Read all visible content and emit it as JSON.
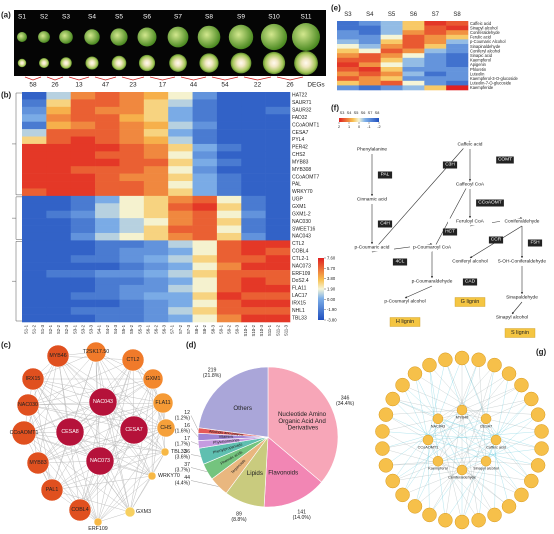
{
  "panels": {
    "a": {
      "label": "(a)",
      "stages": [
        "S1",
        "S2",
        "S3",
        "S4",
        "S5",
        "S6",
        "S7",
        "S8",
        "S9",
        "S10",
        "S11"
      ],
      "degs": [
        58,
        26,
        13,
        47,
        23,
        17,
        44,
        54,
        22,
        26
      ],
      "degs_label": "DEGs"
    },
    "b": {
      "label": "(b)",
      "genes": [
        "HAT22",
        "SAUR71",
        "SAUR32",
        "FAD32",
        "CCoAOMT1",
        "CESA7",
        "PYL4",
        "PER42",
        "CHS2",
        "MYB83",
        "MYB308",
        "CCoAOMT7",
        "PAL",
        "WRKY70",
        "UGP",
        "GXM1",
        "GXM1-2",
        "NAC030",
        "SWEET16",
        "NAC043",
        "CTL2",
        "COBL4",
        "CTL2-1",
        "NAC073",
        "ERF109",
        "DoS2.4",
        "FLA11",
        "LAC17",
        "IRX15",
        "NHL1",
        "TBL33"
      ],
      "samples": [
        "S1-1",
        "S1-2",
        "S1-3",
        "S2-1",
        "S2-2",
        "S2-3",
        "S3-1",
        "S3-2",
        "S3-3",
        "S4-1",
        "S4-2",
        "S4-3",
        "S5-1",
        "S5-2",
        "S5-3",
        "S6-1",
        "S6-2",
        "S6-3",
        "S7-1",
        "S7-2",
        "S7-3",
        "S8-1",
        "S8-2",
        "S8-3",
        "S9-1",
        "S9-2",
        "S9-3",
        "S10-1",
        "S10-2",
        "S10-3",
        "S11-1",
        "S11-2",
        "S11-3"
      ],
      "matrix": [
        [
          -3,
          1,
          5,
          6,
          5,
          4,
          2,
          -1,
          -3,
          -3,
          -3
        ],
        [
          -2,
          3,
          6,
          6,
          5,
          3,
          1,
          -2,
          -3,
          -3,
          -3
        ],
        [
          -1,
          4,
          6,
          5,
          5,
          3,
          0,
          -2,
          -3,
          -3,
          -2
        ],
        [
          0,
          5,
          6,
          6,
          4,
          3,
          0,
          -2,
          -3,
          -3,
          -3
        ],
        [
          -2,
          4,
          5,
          6,
          5,
          4,
          1,
          -1,
          -3,
          -3,
          -3
        ],
        [
          1,
          6,
          6,
          6,
          5,
          3,
          0,
          -2,
          -3,
          -3,
          -3
        ],
        [
          3,
          6,
          7,
          6,
          5,
          4,
          1,
          -2,
          -3,
          -3,
          -3
        ],
        [
          7,
          7,
          7,
          7,
          6,
          5,
          3,
          0,
          -2,
          -3,
          -3
        ],
        [
          7,
          7,
          7,
          6,
          6,
          5,
          2,
          -1,
          -3,
          -3,
          -3
        ],
        [
          7,
          7,
          7,
          7,
          6,
          6,
          3,
          0,
          -2,
          -3,
          -3
        ],
        [
          7,
          7,
          6,
          6,
          6,
          5,
          2,
          -1,
          -3,
          -3,
          -3
        ],
        [
          7,
          7,
          7,
          6,
          5,
          5,
          3,
          0,
          -2,
          -3,
          -3
        ],
        [
          7,
          7,
          7,
          6,
          6,
          5,
          2,
          0,
          -2,
          -3,
          -3
        ],
        [
          6,
          7,
          7,
          6,
          6,
          5,
          3,
          0,
          -2,
          -3,
          -3
        ],
        [
          -3,
          -3,
          -2,
          0,
          2,
          3,
          5,
          6,
          2,
          -2,
          -3
        ],
        [
          -3,
          -3,
          -2,
          1,
          2,
          3,
          6,
          7,
          3,
          -2,
          -3
        ],
        [
          -3,
          -2,
          -1,
          1,
          2,
          3,
          5,
          6,
          2,
          -1,
          -3
        ],
        [
          -3,
          -3,
          -2,
          0,
          1,
          2,
          5,
          6,
          3,
          -2,
          -3
        ],
        [
          -3,
          -3,
          -2,
          0,
          1,
          3,
          6,
          6,
          2,
          -2,
          -3
        ],
        [
          -3,
          -3,
          -1,
          1,
          2,
          3,
          5,
          6,
          3,
          -1,
          -3
        ],
        [
          -3,
          -3,
          -3,
          -2,
          -2,
          -1,
          1,
          2,
          6,
          7,
          7
        ],
        [
          -3,
          -3,
          -3,
          -2,
          -1,
          -1,
          0,
          2,
          6,
          7,
          6
        ],
        [
          -3,
          -3,
          -2,
          -2,
          -1,
          0,
          1,
          3,
          6,
          6,
          7
        ],
        [
          -3,
          -3,
          -3,
          -3,
          -2,
          -1,
          0,
          2,
          5,
          7,
          7
        ],
        [
          -3,
          -2,
          -2,
          -1,
          -1,
          0,
          1,
          3,
          6,
          6,
          6
        ],
        [
          -3,
          -3,
          -3,
          -2,
          -2,
          -1,
          0,
          2,
          6,
          7,
          6
        ],
        [
          -3,
          -3,
          -3,
          -2,
          -1,
          -1,
          1,
          2,
          6,
          7,
          7
        ],
        [
          -3,
          -3,
          -2,
          -2,
          -1,
          0,
          0,
          3,
          7,
          6,
          6
        ],
        [
          -3,
          -3,
          -3,
          -3,
          -2,
          -1,
          0,
          2,
          6,
          7,
          7
        ],
        [
          -3,
          -3,
          -2,
          -2,
          -2,
          -1,
          1,
          3,
          6,
          6,
          6
        ],
        [
          -3,
          -3,
          -3,
          -2,
          -2,
          -1,
          0,
          2,
          5,
          7,
          7
        ]
      ],
      "scale": [
        {
          "value": 7.6,
          "label": "7.60"
        },
        {
          "value": 5.7,
          "label": "5.70"
        },
        {
          "value": 3.8,
          "label": "3.80"
        },
        {
          "value": 1.9,
          "label": "1.90"
        },
        {
          "value": 0,
          "label": "0.00"
        },
        {
          "value": -1.9,
          "label": "-1.90"
        },
        {
          "value": -3.8,
          "label": "-3.80"
        }
      ]
    },
    "c": {
      "label": "(c)",
      "nodes": [
        {
          "label": "MYB46",
          "color": "#e0501f"
        },
        {
          "label": "T2SK17.50",
          "color": "#f07a2a"
        },
        {
          "label": "CTL2",
          "color": "#f07a2a"
        },
        {
          "label": "GXM1",
          "color": "#f3882e"
        },
        {
          "label": "IRX15",
          "color": "#e0501f"
        },
        {
          "label": "NAC030",
          "color": "#e0501f"
        },
        {
          "label": "FLA11",
          "color": "#f59a35"
        },
        {
          "label": "CCoAOMT1",
          "color": "#e0501f"
        },
        {
          "label": "CHS",
          "color": "#f5a03a"
        },
        {
          "label": "NAC043",
          "color": "#b5123a"
        },
        {
          "label": "CESA8",
          "color": "#b5123a"
        },
        {
          "label": "CESA7",
          "color": "#b5123a"
        },
        {
          "label": "NAC073",
          "color": "#b5123a"
        },
        {
          "label": "TBL33",
          "color": "#f7b845"
        },
        {
          "label": "MYB83",
          "color": "#e0501f"
        },
        {
          "label": "PAL1",
          "color": "#e0501f"
        },
        {
          "label": "WRKY70",
          "color": "#f7b845"
        },
        {
          "label": "COBL4",
          "color": "#e0501f"
        },
        {
          "label": "ERF109",
          "color": "#f7b845"
        },
        {
          "label": "GXM3",
          "color": "#f7d060"
        }
      ]
    },
    "d": {
      "label": "(d)",
      "slices": [
        {
          "name": "Nucleotide Amino Organic Acid And Derivatives",
          "value": 346,
          "percent_label": "(34.4%)",
          "color": "#f7a6b8"
        },
        {
          "name": "Flavonoids",
          "value": 141,
          "percent_label": "(14.0%)",
          "color": "#f286b4"
        },
        {
          "name": "Lipids",
          "value": 89,
          "percent_label": "(8.8%)",
          "color": "#c9cb7e"
        },
        {
          "name": "Terpenoids",
          "value": 44,
          "percent_label": "(4.4%)",
          "color": "#e9b77f"
        },
        {
          "name": "Phenolic acids",
          "value": 37,
          "percent_label": "(3.7%)",
          "color": "#74c47e"
        },
        {
          "name": "Phenylpropanoids",
          "value": 36,
          "percent_label": "(3.6%)",
          "color": "#5fbfb0"
        },
        {
          "name": "Phytohormones",
          "value": 17,
          "percent_label": "(1.7%)",
          "color": "#c59be0"
        },
        {
          "name": "Vitamins",
          "value": 16,
          "percent_label": "(1.6%)",
          "color": "#9f86d6"
        },
        {
          "name": "Alcohols and polyols",
          "value": 12,
          "percent_label": "(1.2%)",
          "color": "#e65a5a"
        },
        {
          "name": "Others",
          "value": 219,
          "percent_label": "(21.8%)",
          "color": "#aaa6d9"
        }
      ]
    },
    "e": {
      "label": "(e)",
      "columns": [
        "S3",
        "S4",
        "S5",
        "S6",
        "S7",
        "S8"
      ],
      "rows": [
        "Caffeic acid",
        "Sinapyl alcohol",
        "Coniferaldehyde",
        "Ferulic acid",
        "p-Coumaric Alcohol",
        "Sinapinaldehyde",
        "Coniferyl alcohol",
        "Sinapic acid",
        "Kaempferol",
        "Apigenin",
        "Phloretin",
        "Luteolin",
        "Kaempferol-3-O-glucoside",
        "Luteolin-7-O-glucoside",
        "Kaempferide"
      ],
      "matrix": [
        [
          -1.5,
          -1,
          -0.5,
          0.5,
          1.8,
          1.5
        ],
        [
          -1.5,
          -1.5,
          -0.5,
          0.5,
          1.5,
          1.8
        ],
        [
          -1,
          -1.5,
          -0.5,
          1,
          1.5,
          1
        ],
        [
          -1,
          -1,
          0,
          1.5,
          1,
          0.5
        ],
        [
          -0.5,
          -1,
          0.5,
          1.5,
          1,
          -0.5
        ],
        [
          0,
          -0.5,
          1,
          1.5,
          0.5,
          -1
        ],
        [
          0.5,
          0,
          1.5,
          1,
          -0.5,
          -1
        ],
        [
          1,
          1.5,
          1,
          0,
          -1,
          -1.5
        ],
        [
          1.5,
          1.5,
          0.5,
          -0.5,
          -1,
          -1.5
        ],
        [
          1.8,
          1,
          0,
          -0.5,
          -1,
          -1.5
        ],
        [
          1.5,
          1.8,
          0.5,
          -1,
          -1,
          -1
        ],
        [
          1,
          1.5,
          1,
          -0.5,
          -1.5,
          -1
        ],
        [
          1.5,
          1,
          0.5,
          -1,
          -1,
          -1
        ],
        [
          0.5,
          1,
          1.5,
          0,
          -1,
          -1.5
        ],
        [
          -1,
          -1.5,
          -1,
          -0.5,
          0.5,
          2
        ]
      ]
    },
    "f": {
      "label": "(f)",
      "scale": [
        2,
        1,
        0,
        -1,
        -2
      ],
      "compounds": [
        "Phenylalanine",
        "Cinnamic acid",
        "p-Coumaric acid",
        "p-Coumaroyl CoA",
        "Caffeic acid",
        "Caffeoyl CoA",
        "Feruloyl CoA",
        "Coniferaldehyde",
        "Coniferyl alcohol",
        "5-OH-Coniferaldehyde",
        "Sinapaldehyde",
        "Sinapyl alcohol",
        "p-Coumaraldehyde",
        "p-Coumaryl alcohol"
      ],
      "enzymes": [
        "PAL",
        "C4H",
        "4CL",
        "HCT",
        "C3H",
        "CCoAOMT",
        "CCR",
        "CAD",
        "COMT",
        "F5H"
      ],
      "lignins": [
        "H lignin",
        "G lignin",
        "S lignin"
      ]
    },
    "g": {
      "label": "(g)",
      "nodes": [
        "Caffeic acid",
        "Sinapyl alcohol",
        "Coniferaldehyde",
        "Kaempferol",
        "CCoAOMT1",
        "NAC043",
        "MYB46",
        "CESA7"
      ]
    }
  }
}
